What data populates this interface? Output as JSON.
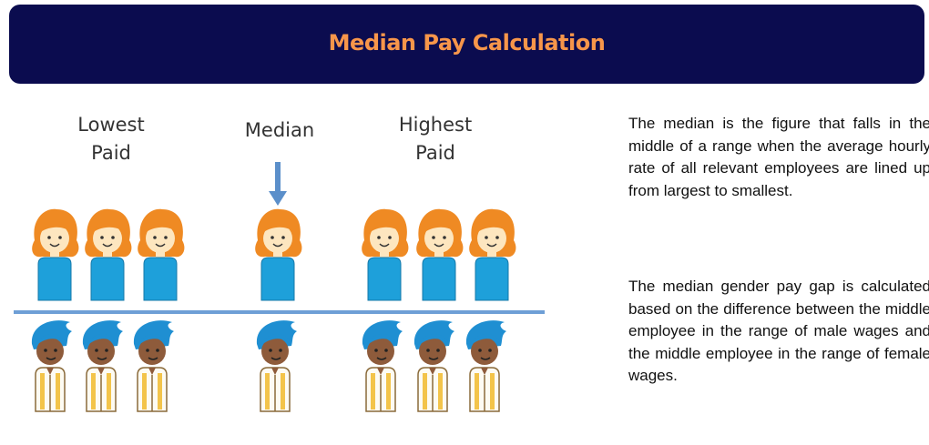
{
  "header": {
    "title": "Median Pay Calculation"
  },
  "groups": [
    {
      "label": [
        "Lowest",
        "Paid"
      ]
    },
    {
      "label": [
        "Median"
      ]
    },
    {
      "label": [
        "Highest",
        "Paid"
      ]
    }
  ],
  "paragraphs": [
    "The median is the figure that falls in the middle of a range when the average hourly rate of all relevant employees are lined up from largest to smallest.",
    "The median gender pay gap is calculated based on the difference between the middle employee in the range of male wages and the middle employee in the range of female wages."
  ]
}
